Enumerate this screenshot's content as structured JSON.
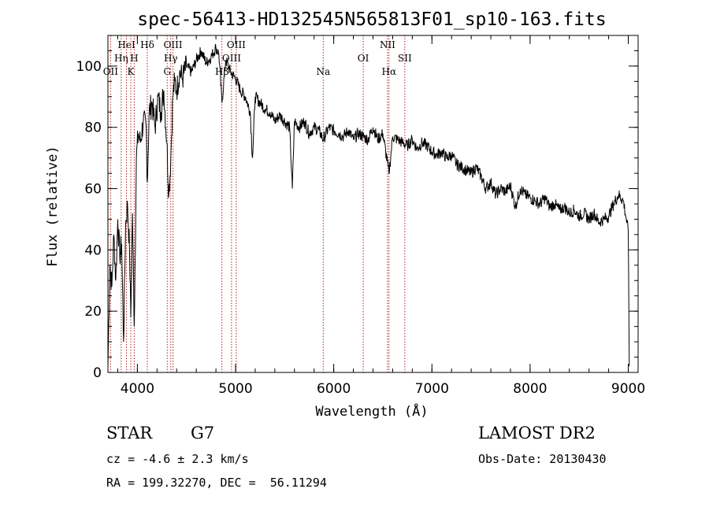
{
  "chart_data": {
    "type": "line",
    "title": "spec-56413-HD132545N565813F01_sp10-163.fits",
    "xlabel": "Wavelength (Å)",
    "ylabel": "Flux (relative)",
    "xlim": [
      3700,
      9100
    ],
    "ylim": [
      0,
      110
    ],
    "x_ticks": [
      4000,
      5000,
      6000,
      7000,
      8000,
      9000
    ],
    "y_ticks": [
      0,
      20,
      40,
      60,
      80,
      100
    ],
    "x_minor_step": 200,
    "y_minor_step": 5,
    "line_color": "#000000",
    "marker_color": "#b22222",
    "series": [
      {
        "x": [
          3700,
          3720,
          3740,
          3760,
          3780,
          3800,
          3820,
          3840,
          3860,
          3880,
          3900,
          3920,
          3933,
          3950,
          3968,
          3990,
          4010,
          4030,
          4060,
          4090,
          4101,
          4120,
          4150,
          4180,
          4210,
          4240,
          4270,
          4300,
          4320,
          4340,
          4360,
          4380,
          4400,
          4430,
          4460,
          4500,
          4550,
          4600,
          4650,
          4700,
          4750,
          4800,
          4830,
          4861,
          4900,
          4950,
          5000,
          5050,
          5100,
          5150,
          5172,
          5200,
          5250,
          5300,
          5350,
          5400,
          5450,
          5500,
          5550,
          5578,
          5600,
          5650,
          5700,
          5750,
          5800,
          5850,
          5893,
          5950,
          6000,
          6050,
          6100,
          6150,
          6200,
          6250,
          6300,
          6350,
          6400,
          6450,
          6500,
          6563,
          6600,
          6650,
          6700,
          6750,
          6800,
          6850,
          6900,
          6950,
          7000,
          7050,
          7100,
          7150,
          7200,
          7250,
          7300,
          7350,
          7400,
          7450,
          7500,
          7550,
          7600,
          7650,
          7700,
          7750,
          7800,
          7850,
          7900,
          7950,
          8000,
          8050,
          8100,
          8150,
          8200,
          8250,
          8300,
          8350,
          8400,
          8450,
          8500,
          8550,
          8600,
          8650,
          8700,
          8750,
          8800,
          8850,
          8900,
          8950,
          8980,
          9000,
          9010
        ],
        "y": [
          2,
          35,
          28,
          45,
          30,
          50,
          38,
          42,
          10,
          48,
          55,
          40,
          18,
          52,
          15,
          70,
          78,
          75,
          82,
          80,
          62,
          85,
          88,
          80,
          90,
          85,
          92,
          75,
          58,
          70,
          90,
          95,
          92,
          98,
          96,
          100,
          98,
          102,
          105,
          101,
          103,
          106,
          104,
          88,
          102,
          98,
          96,
          92,
          90,
          85,
          70,
          90,
          88,
          86,
          85,
          82,
          84,
          82,
          80,
          60,
          82,
          80,
          82,
          78,
          80,
          79,
          76,
          80,
          79,
          78,
          77,
          79,
          76,
          78,
          77,
          76,
          80,
          76,
          78,
          65,
          77,
          76,
          75,
          74,
          76,
          73,
          75,
          74,
          72,
          71,
          72,
          70,
          71,
          68,
          67,
          66,
          65,
          67,
          64,
          60,
          62,
          58,
          60,
          59,
          61,
          54,
          60,
          58,
          57,
          56,
          55,
          57,
          54,
          55,
          53,
          54,
          52,
          53,
          51,
          52,
          50,
          52,
          49,
          50,
          51,
          55,
          58,
          56,
          50,
          46,
          2
        ]
      }
    ],
    "line_markers": [
      {
        "label": "OII",
        "x": 3727,
        "row": 3
      },
      {
        "label": "Hη",
        "x": 3835,
        "row": 2
      },
      {
        "label": "HeI",
        "x": 3889,
        "row": 1
      },
      {
        "label": "K",
        "x": 3933,
        "row": 3
      },
      {
        "label": "H",
        "x": 3968,
        "row": 2
      },
      {
        "label": "Hδ",
        "x": 4101,
        "row": 1
      },
      {
        "label": "G",
        "x": 4304,
        "row": 3
      },
      {
        "label": "Hγ",
        "x": 4340,
        "row": 2
      },
      {
        "label": "OIII",
        "x": 4363,
        "row": 1
      },
      {
        "label": "Hβ",
        "x": 4861,
        "row": 3
      },
      {
        "label": "OIII",
        "x": 4959,
        "row": 2
      },
      {
        "label": "OIII",
        "x": 5007,
        "row": 1
      },
      {
        "label": "Na",
        "x": 5893,
        "row": 3
      },
      {
        "label": "OI",
        "x": 6300,
        "row": 2
      },
      {
        "label": "NII",
        "x": 6548,
        "row": 1
      },
      {
        "label": "Hα",
        "x": 6563,
        "row": 3
      },
      {
        "label": "SII",
        "x": 6724,
        "row": 2
      }
    ]
  },
  "info": {
    "object_class": "STAR",
    "subclass": "G7",
    "redshift": "cz = -4.6 ± 2.3 km/s",
    "coords": "RA = 199.32270, DEC =  56.11294",
    "survey": "LAMOST DR2",
    "obs_date": "Obs-Date: 20130430"
  }
}
